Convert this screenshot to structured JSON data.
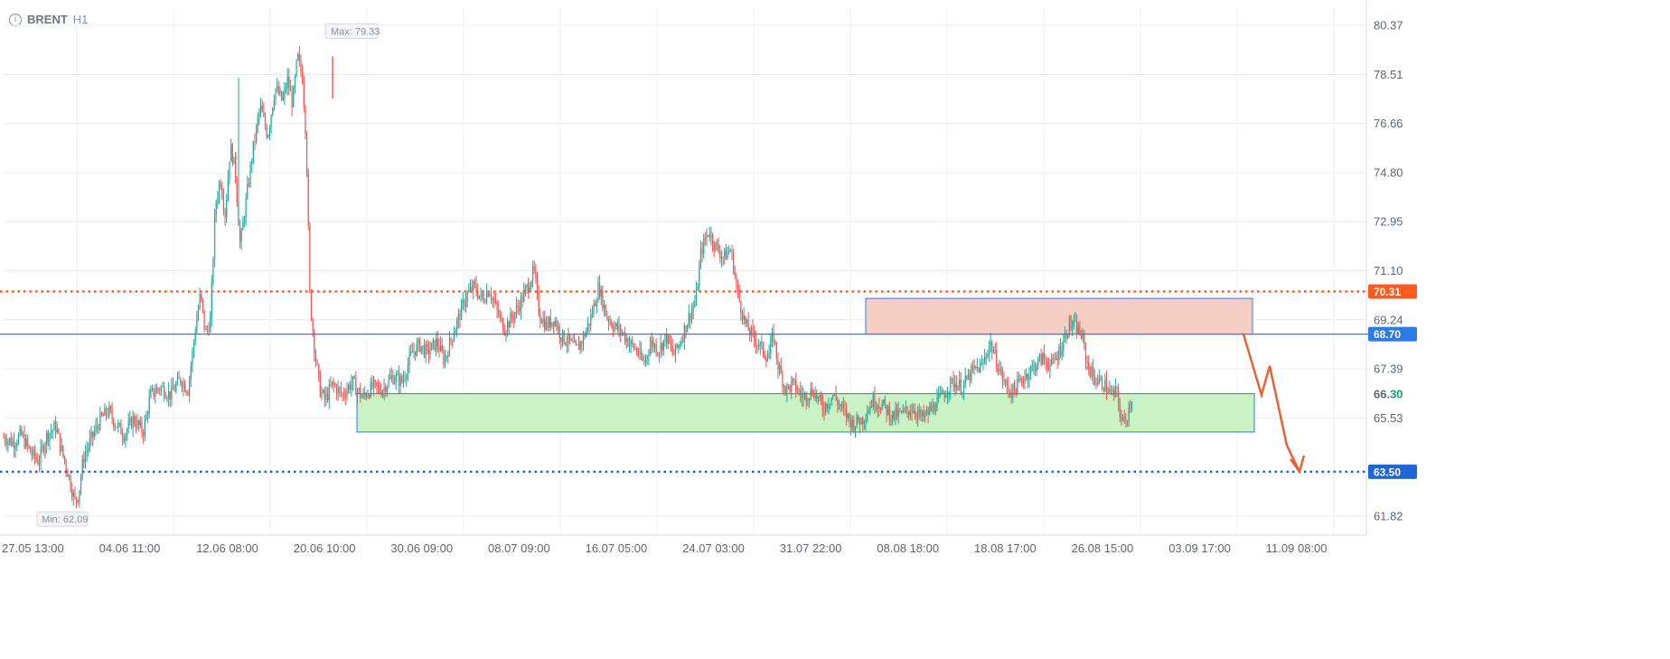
{
  "header": {
    "symbol": "BRENT",
    "timeframe": "H1",
    "info_icon": "info-icon"
  },
  "colors": {
    "up": "#26a69a",
    "down": "#ef5350",
    "resistance": "#ff5a1f",
    "support": "#1e66d6",
    "level_blue": "#2d7be5",
    "last_price_green": "#0aa86b",
    "sell_zone_fill": "#f6cfc4",
    "buy_zone_fill": "#c9f2c5",
    "arrow": "#e0663a"
  },
  "chart_data": {
    "type": "candlestick",
    "symbol": "BRENT",
    "timeframe": "H1",
    "ylim": [
      61.0,
      81.0
    ],
    "y_ticks": [
      "80.37",
      "78.51",
      "76.66",
      "74.80",
      "72.95",
      "71.10",
      "69.24",
      "67.39",
      "65.53",
      "61.82"
    ],
    "x_ticks": [
      "27.05 13:00",
      "04.06 11:00",
      "12.06 08:00",
      "20.06 10:00",
      "30.06 09:00",
      "08.07 09:00",
      "16.07 05:00",
      "24.07 03:00",
      "31.07 22:00",
      "08.08 18:00",
      "18.08 17:00",
      "26.08 15:00",
      "03.09 17:00",
      "11.09 08:00"
    ],
    "max_label": "Max: 79.33",
    "min_label": "Min: 62.09",
    "max_value": 79.33,
    "min_value": 62.09,
    "last_price": {
      "main": "66.",
      "highlight": "30",
      "value": 66.3
    },
    "levels": [
      {
        "label": "70.31",
        "value": 70.31,
        "style": "dotted",
        "color": "#ff5a1f"
      },
      {
        "label": "68.70",
        "value": 68.7,
        "style": "solid",
        "color": "#2d7be5"
      },
      {
        "label": "63.50",
        "value": 63.5,
        "style": "dotted",
        "color": "#1e66d6"
      }
    ],
    "zones": [
      {
        "name": "sell-zone",
        "x_from": "04.08",
        "x_to": "05.09",
        "y_from": 68.7,
        "y_to": 70.05,
        "fill": "#f6cfc4"
      },
      {
        "name": "buy-zone",
        "x_from": "25.06",
        "x_to": "05.09",
        "y_from": 65.0,
        "y_to": 66.45,
        "fill": "#c9f2c5"
      }
    ],
    "projection": [
      {
        "t": 0.0,
        "price": 68.7
      },
      {
        "t": 0.2,
        "price": 66.4
      },
      {
        "t": 0.35,
        "price": 67.5
      },
      {
        "t": 0.65,
        "price": 64.5
      },
      {
        "t": 1.0,
        "price": 63.5
      }
    ],
    "path": [
      [
        0,
        64.8
      ],
      [
        0.008,
        64.6
      ],
      [
        0.014,
        64.9
      ],
      [
        0.022,
        64.2
      ],
      [
        0.028,
        63.9
      ],
      [
        0.035,
        64.9
      ],
      [
        0.042,
        65.2
      ],
      [
        0.046,
        64.4
      ],
      [
        0.052,
        63.4
      ],
      [
        0.057,
        62.4
      ],
      [
        0.06,
        62.6
      ],
      [
        0.064,
        64.0
      ],
      [
        0.07,
        64.7
      ],
      [
        0.078,
        65.5
      ],
      [
        0.084,
        65.8
      ],
      [
        0.09,
        65.3
      ],
      [
        0.097,
        64.9
      ],
      [
        0.104,
        65.5
      ],
      [
        0.112,
        65.0
      ],
      [
        0.118,
        66.4
      ],
      [
        0.126,
        66.7
      ],
      [
        0.134,
        66.4
      ],
      [
        0.142,
        67.0
      ],
      [
        0.148,
        66.6
      ],
      [
        0.154,
        68.9
      ],
      [
        0.158,
        70.2
      ],
      [
        0.162,
        68.7
      ],
      [
        0.166,
        69.2
      ],
      [
        0.17,
        73.5
      ],
      [
        0.174,
        74.6
      ],
      [
        0.178,
        73.2
      ],
      [
        0.182,
        75.8
      ],
      [
        0.186,
        74.9
      ],
      [
        0.19,
        72.0
      ],
      [
        0.194,
        73.5
      ],
      [
        0.2,
        75.6
      ],
      [
        0.206,
        77.3
      ],
      [
        0.212,
        76.2
      ],
      [
        0.218,
        78.0
      ],
      [
        0.224,
        77.5
      ],
      [
        0.228,
        78.3
      ],
      [
        0.232,
        77.4
      ],
      [
        0.236,
        79.2
      ],
      [
        0.24,
        78.4
      ],
      [
        0.243,
        76.0
      ],
      [
        0.246,
        70.0
      ],
      [
        0.25,
        68.0
      ],
      [
        0.254,
        66.6
      ],
      [
        0.258,
        66.2
      ],
      [
        0.264,
        66.8
      ],
      [
        0.272,
        66.4
      ],
      [
        0.28,
        66.9
      ],
      [
        0.288,
        66.3
      ],
      [
        0.296,
        66.7
      ],
      [
        0.304,
        66.6
      ],
      [
        0.312,
        67.1
      ],
      [
        0.32,
        66.9
      ],
      [
        0.328,
        68.0
      ],
      [
        0.334,
        68.3
      ],
      [
        0.34,
        68.0
      ],
      [
        0.348,
        68.4
      ],
      [
        0.354,
        67.7
      ],
      [
        0.36,
        68.6
      ],
      [
        0.366,
        69.4
      ],
      [
        0.372,
        70.2
      ],
      [
        0.378,
        70.5
      ],
      [
        0.384,
        70.0
      ],
      [
        0.39,
        70.4
      ],
      [
        0.396,
        69.6
      ],
      [
        0.402,
        68.9
      ],
      [
        0.408,
        69.3
      ],
      [
        0.414,
        69.8
      ],
      [
        0.42,
        70.4
      ],
      [
        0.426,
        71.1
      ],
      [
        0.43,
        69.5
      ],
      [
        0.436,
        69.0
      ],
      [
        0.442,
        69.3
      ],
      [
        0.448,
        68.6
      ],
      [
        0.454,
        68.4
      ],
      [
        0.46,
        68.1
      ],
      [
        0.466,
        68.6
      ],
      [
        0.472,
        69.4
      ],
      [
        0.478,
        70.5
      ],
      [
        0.484,
        69.4
      ],
      [
        0.49,
        69.0
      ],
      [
        0.496,
        68.8
      ],
      [
        0.502,
        68.4
      ],
      [
        0.508,
        68.1
      ],
      [
        0.514,
        67.6
      ],
      [
        0.52,
        68.4
      ],
      [
        0.526,
        68.1
      ],
      [
        0.532,
        68.6
      ],
      [
        0.538,
        67.9
      ],
      [
        0.544,
        68.5
      ],
      [
        0.55,
        69.3
      ],
      [
        0.556,
        70.0
      ],
      [
        0.56,
        71.8
      ],
      [
        0.566,
        72.6
      ],
      [
        0.572,
        72.0
      ],
      [
        0.578,
        71.6
      ],
      [
        0.584,
        71.9
      ],
      [
        0.59,
        70.1
      ],
      [
        0.596,
        69.0
      ],
      [
        0.602,
        68.6
      ],
      [
        0.608,
        68.2
      ],
      [
        0.614,
        67.8
      ],
      [
        0.618,
        68.7
      ],
      [
        0.622,
        67.5
      ],
      [
        0.628,
        66.6
      ],
      [
        0.634,
        66.8
      ],
      [
        0.642,
        66.3
      ],
      [
        0.65,
        66.6
      ],
      [
        0.658,
        65.9
      ],
      [
        0.666,
        66.4
      ],
      [
        0.674,
        65.8
      ],
      [
        0.682,
        65.3
      ],
      [
        0.69,
        65.5
      ],
      [
        0.698,
        66.2
      ],
      [
        0.706,
        66.0
      ],
      [
        0.714,
        65.6
      ],
      [
        0.722,
        65.7
      ],
      [
        0.73,
        65.9
      ],
      [
        0.738,
        65.5
      ],
      [
        0.746,
        65.9
      ],
      [
        0.754,
        66.4
      ],
      [
        0.762,
        66.9
      ],
      [
        0.77,
        66.7
      ],
      [
        0.778,
        67.3
      ],
      [
        0.786,
        67.5
      ],
      [
        0.792,
        68.4
      ],
      [
        0.798,
        67.6
      ],
      [
        0.804,
        66.8
      ],
      [
        0.81,
        66.5
      ],
      [
        0.818,
        67.0
      ],
      [
        0.826,
        67.4
      ],
      [
        0.834,
        67.8
      ],
      [
        0.842,
        67.5
      ],
      [
        0.85,
        68.3
      ],
      [
        0.856,
        69.1
      ],
      [
        0.862,
        68.9
      ],
      [
        0.866,
        68.6
      ],
      [
        0.87,
        67.6
      ],
      [
        0.876,
        67.0
      ],
      [
        0.884,
        66.8
      ],
      [
        0.89,
        66.4
      ],
      [
        0.894,
        66.5
      ],
      [
        0.898,
        65.3
      ],
      [
        0.902,
        65.6
      ],
      [
        0.906,
        66.3
      ]
    ]
  }
}
